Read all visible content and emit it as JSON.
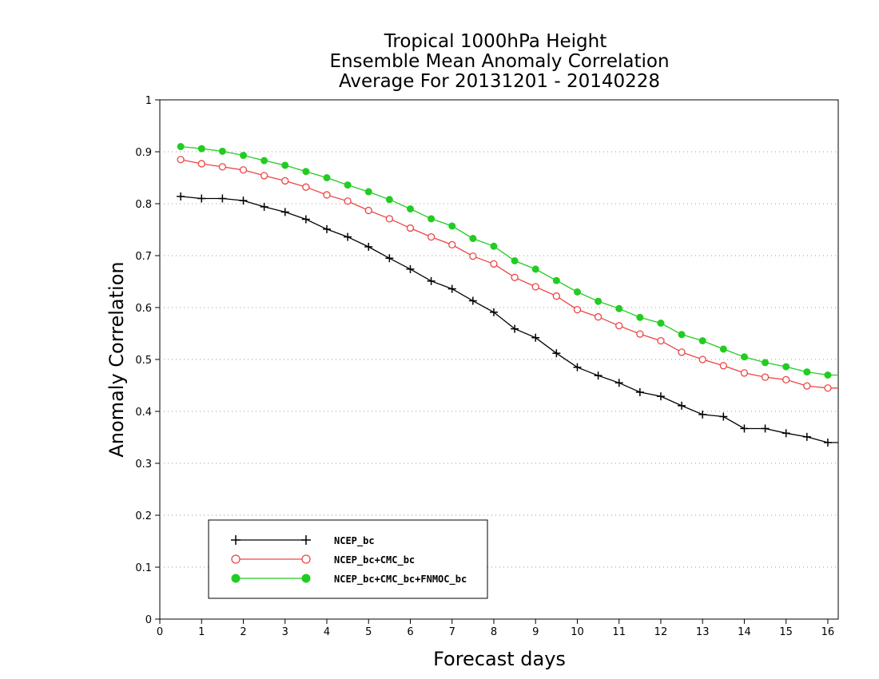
{
  "chart_data": {
    "type": "line",
    "title": [
      "Tropical 1000hPa Height",
      "Ensemble Mean Anomaly Correlation",
      "Average For 20131201 - 20140228"
    ],
    "xlabel": "Forecast days",
    "ylabel": "Anomaly Correlation",
    "xlim": [
      0,
      16.25
    ],
    "ylim": [
      0,
      1
    ],
    "xticks": [
      0,
      1,
      2,
      3,
      4,
      5,
      6,
      7,
      8,
      9,
      10,
      11,
      12,
      13,
      14,
      15,
      16
    ],
    "yticks": [
      0,
      0.1,
      0.2,
      0.3,
      0.4,
      0.5,
      0.6,
      0.7,
      0.8,
      0.9,
      1
    ],
    "ytick_labels": [
      "0",
      "0.1",
      "0.2",
      "0.3",
      "0.4",
      "0.5",
      "0.6",
      "0.7",
      "0.8",
      "0.9",
      "1"
    ],
    "grid": "horizontal dotted",
    "legend_position": "bottom-left",
    "x": [
      0.5,
      1,
      1.5,
      2,
      2.5,
      3,
      3.5,
      4,
      4.5,
      5,
      5.5,
      6,
      6.5,
      7,
      7.5,
      8,
      8.5,
      9,
      9.5,
      10,
      10.5,
      11,
      11.5,
      12,
      12.5,
      13,
      13.5,
      14,
      14.5,
      15,
      15.5,
      16,
      16.25
    ],
    "series": [
      {
        "name": "NCEP_bc",
        "color": "#000000",
        "marker": "plus",
        "values": [
          0.814,
          0.81,
          0.81,
          0.806,
          0.794,
          0.784,
          0.77,
          0.751,
          0.736,
          0.717,
          0.695,
          0.674,
          0.651,
          0.636,
          0.613,
          0.591,
          0.559,
          0.542,
          0.512,
          0.485,
          0.469,
          0.455,
          0.437,
          0.429,
          0.411,
          0.394,
          0.39,
          0.367,
          0.367,
          0.358,
          0.351,
          0.34,
          0.34
        ]
      },
      {
        "name": "NCEP_bc+CMC_bc",
        "color": "#ee4444",
        "marker": "open-circle",
        "values": [
          0.885,
          0.877,
          0.871,
          0.865,
          0.854,
          0.844,
          0.832,
          0.817,
          0.805,
          0.787,
          0.771,
          0.753,
          0.736,
          0.721,
          0.699,
          0.684,
          0.658,
          0.64,
          0.622,
          0.596,
          0.582,
          0.565,
          0.549,
          0.536,
          0.514,
          0.5,
          0.488,
          0.474,
          0.466,
          0.461,
          0.449,
          0.445,
          0.445
        ]
      },
      {
        "name": "NCEP_bc+CMC_bc+FNMOC_bc",
        "color": "#22cc22",
        "marker": "filled-circle",
        "values": [
          0.91,
          0.906,
          0.901,
          0.893,
          0.883,
          0.874,
          0.862,
          0.85,
          0.836,
          0.823,
          0.808,
          0.79,
          0.771,
          0.757,
          0.733,
          0.718,
          0.69,
          0.674,
          0.652,
          0.63,
          0.612,
          0.598,
          0.581,
          0.57,
          0.548,
          0.536,
          0.52,
          0.505,
          0.494,
          0.486,
          0.476,
          0.47,
          0.47
        ]
      }
    ]
  }
}
